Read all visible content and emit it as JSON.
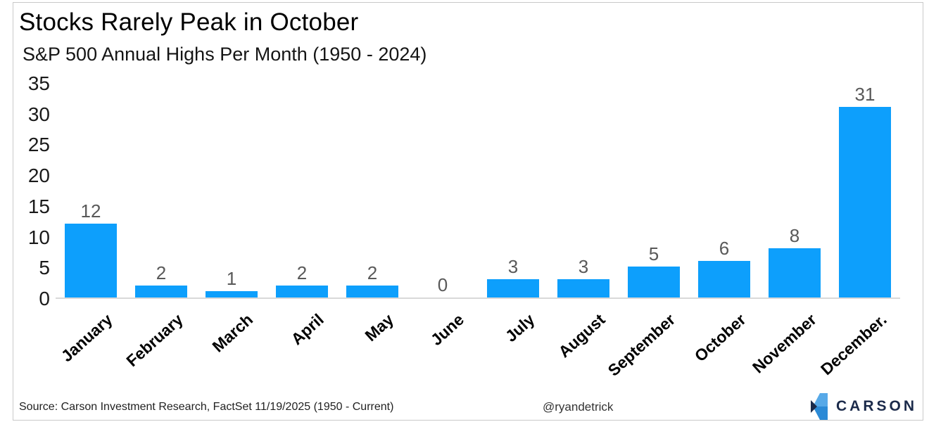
{
  "chart_data": {
    "type": "bar",
    "title": "Stocks Rarely Peak in October",
    "subtitle": "S&P 500 Annual Highs Per Month (1950 - 2024)",
    "categories": [
      "January",
      "February",
      "March",
      "April",
      "May",
      "June",
      "July",
      "August",
      "September",
      "October",
      "November",
      "December."
    ],
    "values": [
      12,
      2,
      1,
      2,
      2,
      0,
      3,
      3,
      5,
      6,
      8,
      31
    ],
    "ylim": [
      0,
      35
    ],
    "yticks": [
      0,
      5,
      10,
      15,
      20,
      25,
      30,
      35
    ],
    "grid": false,
    "legend": false,
    "xlabel": "",
    "ylabel": "",
    "bar_color": "#0D9FFC",
    "value_label_color": "#595959",
    "axis_line_color": "#d9d9d9"
  },
  "footer": {
    "source": "Source: Carson Investment Research, FactSet 11/19/2025 (1950 - Current)",
    "handle": "@ryandetrick",
    "logo_text": "CARSON",
    "logo_colors": {
      "light_blue": "#57a9e8",
      "mid_blue": "#2b8ad6",
      "navy": "#1b2a4a"
    }
  }
}
